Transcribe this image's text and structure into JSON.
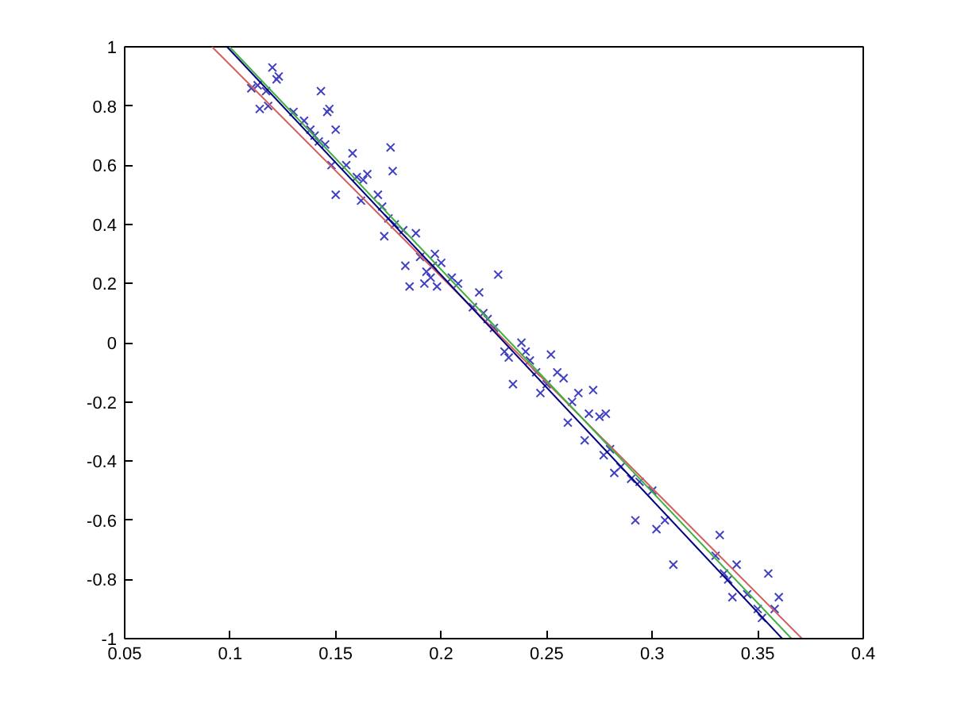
{
  "chart_data": {
    "type": "scatter",
    "xlim": [
      0.05,
      0.4
    ],
    "ylim": [
      -1,
      1
    ],
    "xticks": [
      0.05,
      0.1,
      0.15,
      0.2,
      0.25,
      0.3,
      0.35,
      0.4
    ],
    "yticks": [
      -1,
      -0.8,
      -0.6,
      -0.4,
      -0.2,
      0,
      0.2,
      0.4,
      0.6,
      0.8,
      1
    ],
    "grid": false,
    "series": [
      {
        "marker": "cross",
        "color": "#4040c0",
        "x": [
          0.12,
          0.123,
          0.122,
          0.113,
          0.117,
          0.11,
          0.114,
          0.118,
          0.143,
          0.147,
          0.146,
          0.13,
          0.135,
          0.138,
          0.14,
          0.142,
          0.145,
          0.15,
          0.148,
          0.15,
          0.155,
          0.158,
          0.16,
          0.163,
          0.165,
          0.162,
          0.17,
          0.172,
          0.173,
          0.175,
          0.176,
          0.177,
          0.178,
          0.182,
          0.183,
          0.185,
          0.188,
          0.19,
          0.192,
          0.193,
          0.195,
          0.196,
          0.197,
          0.198,
          0.2,
          0.205,
          0.208,
          0.215,
          0.218,
          0.22,
          0.222,
          0.225,
          0.227,
          0.23,
          0.232,
          0.234,
          0.238,
          0.24,
          0.242,
          0.245,
          0.247,
          0.25,
          0.252,
          0.255,
          0.258,
          0.26,
          0.262,
          0.265,
          0.268,
          0.27,
          0.272,
          0.275,
          0.277,
          0.278,
          0.28,
          0.282,
          0.285,
          0.29,
          0.292,
          0.294,
          0.3,
          0.302,
          0.306,
          0.31,
          0.33,
          0.332,
          0.334,
          0.336,
          0.338,
          0.34,
          0.345,
          0.35,
          0.352,
          0.355,
          0.358,
          0.36
        ],
        "values": [
          0.93,
          0.9,
          0.89,
          0.87,
          0.85,
          0.86,
          0.79,
          0.8,
          0.85,
          0.79,
          0.78,
          0.78,
          0.75,
          0.72,
          0.7,
          0.68,
          0.67,
          0.72,
          0.6,
          0.5,
          0.6,
          0.64,
          0.56,
          0.55,
          0.57,
          0.48,
          0.5,
          0.46,
          0.36,
          0.42,
          0.66,
          0.58,
          0.4,
          0.38,
          0.26,
          0.19,
          0.37,
          0.29,
          0.2,
          0.24,
          0.22,
          0.26,
          0.3,
          0.19,
          0.27,
          0.22,
          0.2,
          0.12,
          0.17,
          0.1,
          0.08,
          0.05,
          0.23,
          -0.03,
          -0.05,
          -0.14,
          0.0,
          -0.03,
          -0.06,
          -0.1,
          -0.17,
          -0.14,
          -0.04,
          -0.1,
          -0.12,
          -0.27,
          -0.2,
          -0.17,
          -0.33,
          -0.24,
          -0.16,
          -0.25,
          -0.38,
          -0.24,
          -0.36,
          -0.44,
          -0.42,
          -0.46,
          -0.6,
          -0.47,
          -0.5,
          -0.63,
          -0.6,
          -0.75,
          -0.72,
          -0.65,
          -0.78,
          -0.8,
          -0.86,
          -0.75,
          -0.85,
          -0.9,
          -0.93,
          -0.78,
          -0.9,
          -0.86
        ]
      },
      {
        "type": "line",
        "color": "#d06060",
        "x": [
          0.0914,
          0.371
        ],
        "values": [
          1,
          -1
        ]
      },
      {
        "type": "line",
        "color": "#40b040",
        "x": [
          0.0997,
          0.366
        ],
        "values": [
          1,
          -1
        ]
      },
      {
        "type": "line",
        "color": "#000080",
        "x": [
          0.0985,
          0.3616
        ],
        "values": [
          1,
          -1
        ]
      }
    ]
  }
}
